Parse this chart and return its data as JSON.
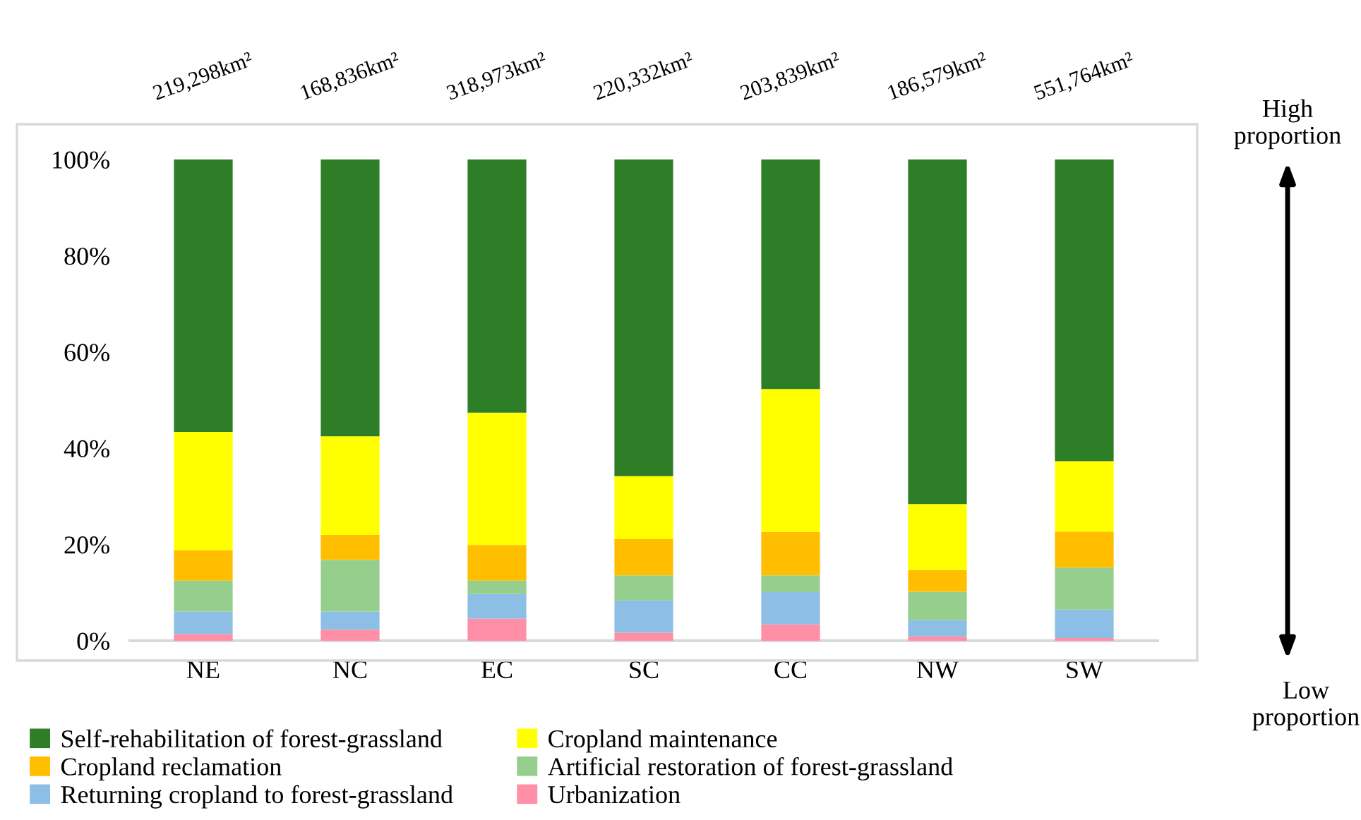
{
  "chart_data": {
    "type": "bar",
    "stacked": true,
    "categories": [
      "NE",
      "NC",
      "EC",
      "SC",
      "CC",
      "NW",
      "SW"
    ],
    "series": [
      {
        "name": "Urbanization",
        "color": "#ff8fa6",
        "values": [
          1.4,
          2.3,
          4.6,
          1.7,
          3.4,
          0.9,
          0.6
        ]
      },
      {
        "name": "Returning cropland to forest-grassland",
        "color": "#8dbfe6",
        "values": [
          4.7,
          3.8,
          5.1,
          6.7,
          6.7,
          3.4,
          5.9
        ]
      },
      {
        "name": "Artificial restoration of forest-grassland",
        "color": "#96cf8d",
        "values": [
          6.4,
          10.7,
          2.8,
          5.2,
          3.5,
          5.9,
          8.7
        ]
      },
      {
        "name": "Cropland reclamation",
        "color": "#ffbf00",
        "values": [
          6.3,
          5.2,
          7.4,
          7.5,
          9.0,
          4.5,
          7.5
        ]
      },
      {
        "name": "Cropland maintenance",
        "color": "#ffff00",
        "values": [
          24.6,
          20.5,
          27.5,
          13.1,
          29.7,
          13.7,
          14.6
        ]
      },
      {
        "name": "Self-rehabilitation of forest-grassland",
        "color": "#2e7d27",
        "values": [
          56.6,
          57.5,
          52.6,
          65.8,
          47.7,
          71.6,
          62.7
        ]
      }
    ],
    "ylim": [
      0,
      100
    ],
    "yticks": [
      {
        "value": 0,
        "label": "0%"
      },
      {
        "value": 20,
        "label": "20%"
      },
      {
        "value": 40,
        "label": "40%"
      },
      {
        "value": 60,
        "label": "60%"
      },
      {
        "value": 80,
        "label": "80%"
      },
      {
        "value": 100,
        "label": "100%"
      }
    ],
    "grid": false,
    "legend": "bottom",
    "annotations": [
      "219,298km²",
      "168,836km²",
      "318,973km²",
      "220,332km²",
      "203,839km²",
      "186,579km²",
      "551,764km²",
      "High\nproportion",
      "Low\nproportion"
    ]
  }
}
